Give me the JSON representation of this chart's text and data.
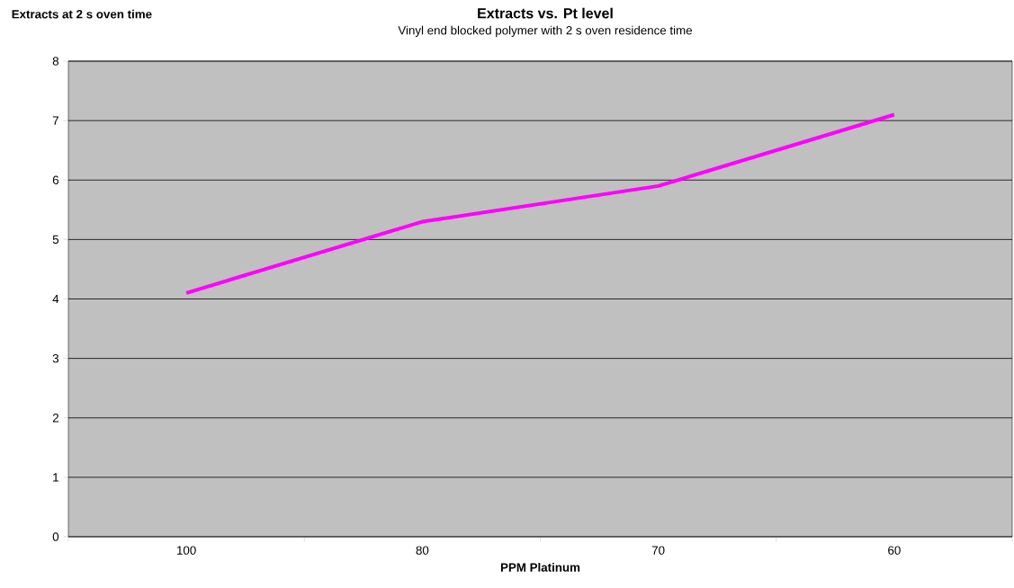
{
  "chart_data": {
    "type": "line",
    "title": "Extracts vs. Pt level",
    "subtitle": "Vinyl end blocked polymer with 2 s oven residence time",
    "annotations": [
      "Extracts at 2 s oven time"
    ],
    "xlabel": "PPM Platinum",
    "categories": [
      "100",
      "80",
      "70",
      "60"
    ],
    "series": [
      {
        "color": "#ff00ff",
        "values": [
          4.1,
          5.3,
          5.9,
          7.1
        ]
      }
    ],
    "ylim": [
      0,
      8
    ],
    "yticks": [
      0,
      1,
      2,
      3,
      4,
      5,
      6,
      7,
      8
    ],
    "grid": "y",
    "legend": false,
    "marker": "none",
    "line_style": "solid"
  }
}
